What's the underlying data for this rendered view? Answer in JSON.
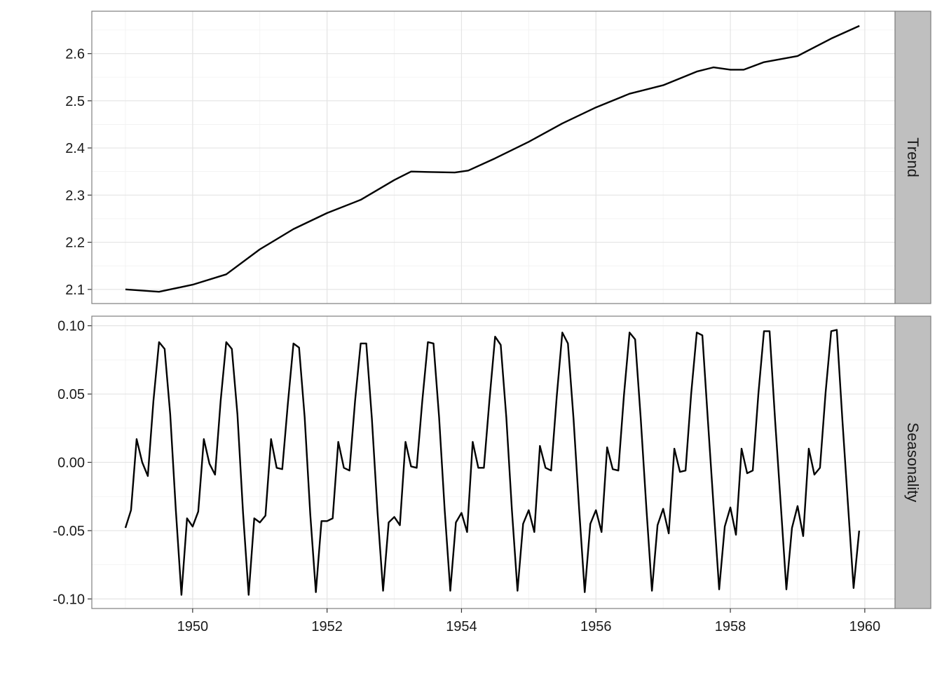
{
  "chart_data": {
    "type": "line",
    "facets": [
      {
        "strip_label": "Trend",
        "ylim": [
          2.07,
          2.69
        ],
        "y_ticks": [
          2.1,
          2.2,
          2.3,
          2.4,
          2.5,
          2.6
        ],
        "y_tick_labels": [
          "2.1",
          "2.2",
          "2.3",
          "2.4",
          "2.5",
          "2.6"
        ],
        "x": [
          1949.0,
          1949.5,
          1950.0,
          1950.5,
          1951.0,
          1951.5,
          1952.0,
          1952.5,
          1953.0,
          1953.25,
          1953.5,
          1953.9,
          1954.1,
          1954.5,
          1955.0,
          1955.5,
          1956.0,
          1956.5,
          1957.0,
          1957.5,
          1957.75,
          1958.0,
          1958.2,
          1958.5,
          1959.0,
          1959.5,
          1959.92
        ],
        "values": [
          2.1,
          2.095,
          2.11,
          2.132,
          2.185,
          2.228,
          2.262,
          2.29,
          2.332,
          2.35,
          2.349,
          2.348,
          2.352,
          2.378,
          2.413,
          2.452,
          2.486,
          2.515,
          2.533,
          2.562,
          2.571,
          2.566,
          2.566,
          2.582,
          2.595,
          2.632,
          2.659
        ]
      },
      {
        "strip_label": "Seasonality",
        "ylim": [
          -0.107,
          0.107
        ],
        "y_ticks": [
          -0.1,
          -0.05,
          0.0,
          0.05,
          0.1
        ],
        "y_tick_labels": [
          "-0.10",
          "-0.05",
          "0.00",
          "0.05",
          "0.10"
        ],
        "x_start": 1949.0,
        "x_step": 0.08333333,
        "values": [
          -0.048,
          -0.035,
          0.017,
          0.0,
          -0.01,
          0.045,
          0.088,
          0.083,
          0.035,
          -0.035,
          -0.097,
          -0.041,
          -0.047,
          -0.036,
          0.017,
          -0.001,
          -0.009,
          0.045,
          0.088,
          0.083,
          0.035,
          -0.037,
          -0.097,
          -0.041,
          -0.044,
          -0.039,
          0.017,
          -0.004,
          -0.005,
          0.043,
          0.087,
          0.084,
          0.033,
          -0.038,
          -0.095,
          -0.043,
          -0.043,
          -0.041,
          0.015,
          -0.004,
          -0.006,
          0.045,
          0.087,
          0.087,
          0.032,
          -0.036,
          -0.094,
          -0.044,
          -0.04,
          -0.046,
          0.015,
          -0.003,
          -0.004,
          0.045,
          0.088,
          0.087,
          0.033,
          -0.035,
          -0.094,
          -0.044,
          -0.037,
          -0.051,
          0.015,
          -0.004,
          -0.004,
          0.046,
          0.092,
          0.086,
          0.033,
          -0.035,
          -0.094,
          -0.045,
          -0.035,
          -0.051,
          0.012,
          -0.004,
          -0.006,
          0.048,
          0.095,
          0.087,
          0.032,
          -0.034,
          -0.095,
          -0.045,
          -0.035,
          -0.051,
          0.011,
          -0.005,
          -0.006,
          0.049,
          0.095,
          0.09,
          0.032,
          -0.033,
          -0.094,
          -0.046,
          -0.034,
          -0.052,
          0.01,
          -0.007,
          -0.006,
          0.05,
          0.095,
          0.093,
          0.03,
          -0.032,
          -0.093,
          -0.047,
          -0.033,
          -0.053,
          0.01,
          -0.008,
          -0.006,
          0.05,
          0.096,
          0.096,
          0.03,
          -0.031,
          -0.093,
          -0.048,
          -0.032,
          -0.054,
          0.01,
          -0.009,
          -0.004,
          0.051,
          0.096,
          0.097,
          0.031,
          -0.031,
          -0.092,
          -0.05
        ]
      }
    ],
    "xlim": [
      1948.5,
      1960.45
    ],
    "x_ticks": [
      1950,
      1952,
      1954,
      1956,
      1958,
      1960
    ],
    "x_tick_labels": [
      "1950",
      "1952",
      "1954",
      "1956",
      "1958",
      "1960"
    ],
    "grid": true,
    "theme": "bw",
    "line_color": "#000000",
    "strip_fill": "#bfbfbf"
  }
}
